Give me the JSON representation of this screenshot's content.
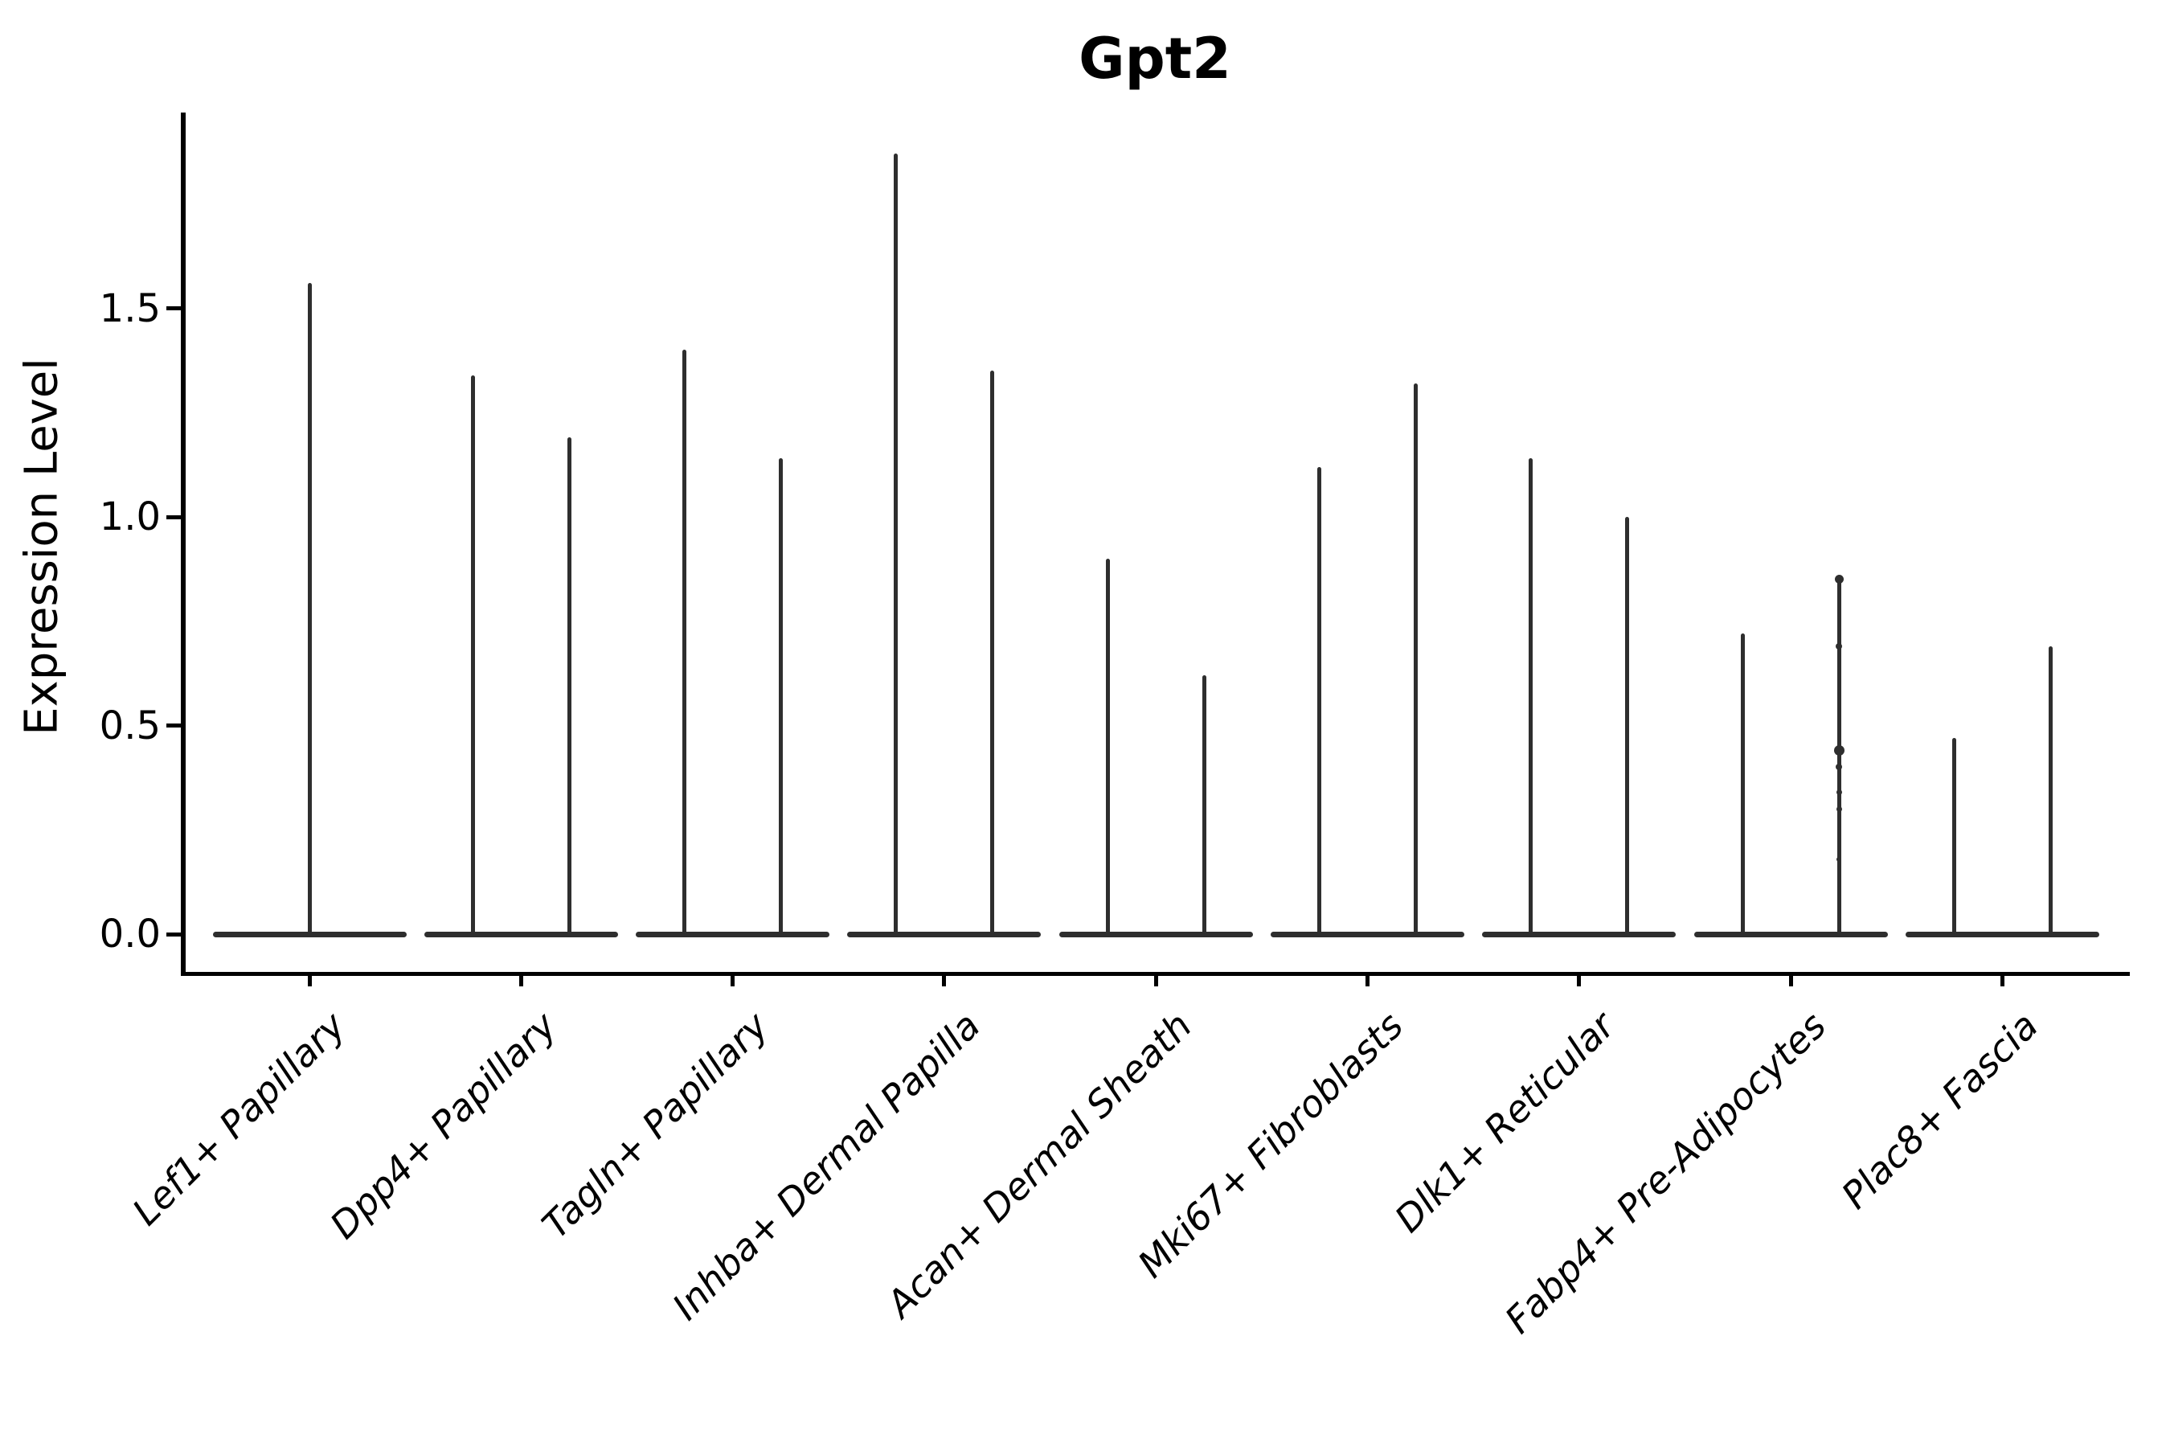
{
  "figure": {
    "background_color": "#ffffff",
    "axis_color": "#000000",
    "text_color": "#000000",
    "violin_color": "#2e2e2e"
  },
  "chart_data": {
    "type": "violin",
    "title": "Gpt2",
    "ylabel": "Expression Level",
    "xlabel": "",
    "grid": false,
    "legend": null,
    "ylim": [
      -0.09,
      1.97
    ],
    "yticks": [
      {
        "label": "0.0",
        "value": 0.0
      },
      {
        "label": "0.5",
        "value": 0.5
      },
      {
        "label": "1.0",
        "value": 1.0
      },
      {
        "label": "1.5",
        "value": 1.5
      }
    ],
    "x_tick_label_rotation": 45,
    "categories": [
      "Lef1+ Papillary",
      "Dpp4+ Papillary",
      "Tagln+ Papillary",
      "Inhba+ Dermal Papilla",
      "Acan+ Dermal Sheath",
      "Mki67+ Fibroblasts",
      "Dlk1+ Reticular",
      "Fabp4+ Pre-Adipocytes",
      "Plac8+ Fascia"
    ],
    "series": [
      {
        "category": "Lef1+ Papillary",
        "violins": [
          {
            "pos": "center",
            "min": 0.0,
            "max": 1.56
          }
        ]
      },
      {
        "category": "Dpp4+ Papillary",
        "violins": [
          {
            "pos": "left",
            "min": 0.0,
            "max": 1.34
          },
          {
            "pos": "right",
            "min": 0.0,
            "max": 1.19
          }
        ]
      },
      {
        "category": "Tagln+ Papillary",
        "violins": [
          {
            "pos": "left",
            "min": 0.0,
            "max": 1.4
          },
          {
            "pos": "right",
            "min": 0.0,
            "max": 1.14
          }
        ]
      },
      {
        "category": "Inhba+ Dermal Papilla",
        "violins": [
          {
            "pos": "left",
            "min": 0.0,
            "max": 1.87
          },
          {
            "pos": "right",
            "min": 0.0,
            "max": 1.35
          }
        ]
      },
      {
        "category": "Acan+ Dermal Sheath",
        "violins": [
          {
            "pos": "left",
            "min": 0.0,
            "max": 0.9
          },
          {
            "pos": "right",
            "min": 0.0,
            "max": 0.62
          }
        ]
      },
      {
        "category": "Mki67+ Fibroblasts",
        "violins": [
          {
            "pos": "left",
            "min": 0.0,
            "max": 1.12
          },
          {
            "pos": "right",
            "min": 0.0,
            "max": 1.32
          }
        ]
      },
      {
        "category": "Dlk1+ Reticular",
        "violins": [
          {
            "pos": "left",
            "min": 0.0,
            "max": 1.14
          },
          {
            "pos": "right",
            "min": 0.0,
            "max": 1.0
          }
        ]
      },
      {
        "category": "Fabp4+ Pre-Adipocytes",
        "violins": [
          {
            "pos": "left",
            "min": 0.0,
            "max": 0.72
          },
          {
            "pos": "right",
            "min": 0.0,
            "max": 0.85,
            "dots": [
              {
                "value": 0.85,
                "d": 11
              },
              {
                "value": 0.69,
                "d": 8
              },
              {
                "value": 0.44,
                "d": 13
              },
              {
                "value": 0.4,
                "d": 8
              },
              {
                "value": 0.34,
                "d": 7
              },
              {
                "value": 0.3,
                "d": 7
              },
              {
                "value": 0.18,
                "d": 6
              }
            ]
          }
        ]
      },
      {
        "category": "Plac8+ Fascia",
        "violins": [
          {
            "pos": "left",
            "min": 0.0,
            "max": 0.47
          },
          {
            "pos": "right",
            "min": 0.0,
            "max": 0.69
          }
        ]
      }
    ]
  }
}
